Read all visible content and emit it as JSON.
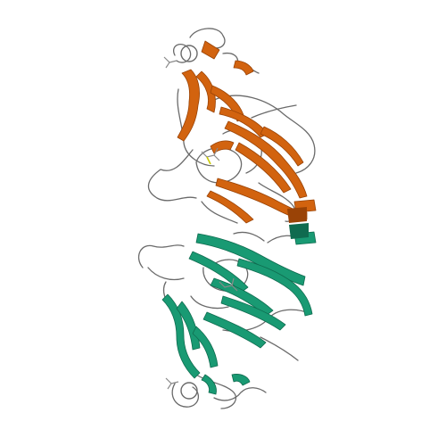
{
  "figure": {
    "background": "#ffffff",
    "chains": [
      {
        "id": "chain-a",
        "color": "#d2630f",
        "color_dark": "#9a4306"
      },
      {
        "id": "chain-b",
        "color": "#199a73",
        "color_dark": "#0f6b4f"
      }
    ],
    "coil_color": "#6a6a6a",
    "ligand_color": "#8a8a8a",
    "ligand_accent": "#c8c800"
  }
}
